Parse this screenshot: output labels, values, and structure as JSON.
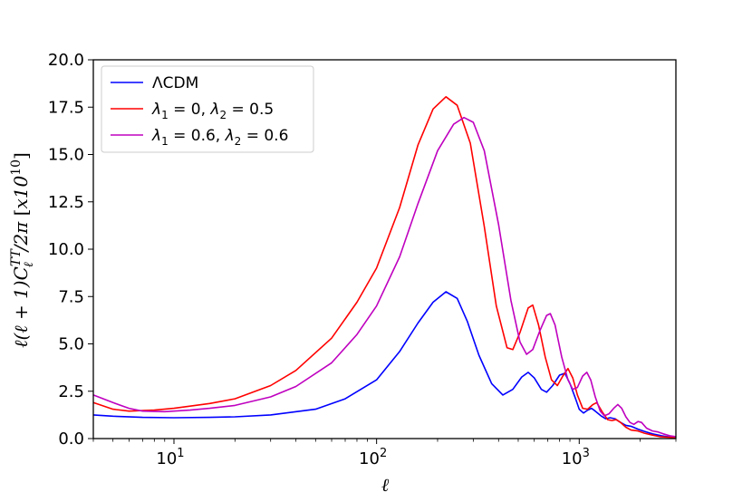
{
  "chart_data": {
    "type": "line",
    "x_scale": "log",
    "xlim": [
      4,
      3000
    ],
    "ylim": [
      0,
      20
    ],
    "xlabel": "ℓ",
    "ylabel": "ℓ(ℓ + 1)C_ℓ^{TT}/2π [x10^{10}]",
    "grid": false,
    "legend_position": "top-left",
    "x_ticks": [
      {
        "value": 10,
        "base": "10",
        "exp": "1"
      },
      {
        "value": 100,
        "base": "10",
        "exp": "2"
      },
      {
        "value": 1000,
        "base": "10",
        "exp": "3"
      }
    ],
    "y_ticks": [
      "0.0",
      "2.5",
      "5.0",
      "7.5",
      "10.0",
      "12.5",
      "15.0",
      "17.5",
      "20.0"
    ],
    "series": [
      {
        "name": "ΛCDM",
        "color": "#0000ff",
        "points": [
          [
            4,
            1.25
          ],
          [
            5,
            1.18
          ],
          [
            7,
            1.12
          ],
          [
            10,
            1.1
          ],
          [
            15,
            1.12
          ],
          [
            20,
            1.15
          ],
          [
            30,
            1.25
          ],
          [
            50,
            1.55
          ],
          [
            70,
            2.1
          ],
          [
            100,
            3.1
          ],
          [
            130,
            4.6
          ],
          [
            160,
            6.1
          ],
          [
            190,
            7.2
          ],
          [
            220,
            7.75
          ],
          [
            250,
            7.4
          ],
          [
            280,
            6.2
          ],
          [
            320,
            4.4
          ],
          [
            370,
            2.9
          ],
          [
            420,
            2.3
          ],
          [
            470,
            2.6
          ],
          [
            520,
            3.25
          ],
          [
            560,
            3.5
          ],
          [
            600,
            3.2
          ],
          [
            650,
            2.6
          ],
          [
            690,
            2.45
          ],
          [
            740,
            2.8
          ],
          [
            800,
            3.35
          ],
          [
            850,
            3.45
          ],
          [
            900,
            2.9
          ],
          [
            960,
            2.1
          ],
          [
            1000,
            1.55
          ],
          [
            1050,
            1.35
          ],
          [
            1100,
            1.5
          ],
          [
            1150,
            1.6
          ],
          [
            1200,
            1.45
          ],
          [
            1280,
            1.2
          ],
          [
            1350,
            1.05
          ],
          [
            1420,
            1.1
          ],
          [
            1500,
            1.05
          ],
          [
            1600,
            0.85
          ],
          [
            1700,
            0.7
          ],
          [
            1800,
            0.65
          ],
          [
            1950,
            0.5
          ],
          [
            2100,
            0.38
          ],
          [
            2300,
            0.25
          ],
          [
            2550,
            0.15
          ],
          [
            2800,
            0.08
          ],
          [
            3000,
            0.05
          ]
        ]
      },
      {
        "name": "λ₁ = 0, λ₂ = 0.5",
        "color": "#ff0000",
        "points": [
          [
            4,
            1.9
          ],
          [
            5,
            1.55
          ],
          [
            6,
            1.45
          ],
          [
            8,
            1.5
          ],
          [
            10,
            1.6
          ],
          [
            15,
            1.85
          ],
          [
            20,
            2.1
          ],
          [
            30,
            2.8
          ],
          [
            40,
            3.6
          ],
          [
            60,
            5.3
          ],
          [
            80,
            7.2
          ],
          [
            100,
            9.0
          ],
          [
            130,
            12.2
          ],
          [
            160,
            15.5
          ],
          [
            190,
            17.4
          ],
          [
            220,
            18.05
          ],
          [
            250,
            17.6
          ],
          [
            290,
            15.6
          ],
          [
            340,
            11.2
          ],
          [
            390,
            7.0
          ],
          [
            440,
            4.8
          ],
          [
            470,
            4.7
          ],
          [
            510,
            5.6
          ],
          [
            560,
            6.9
          ],
          [
            590,
            7.05
          ],
          [
            630,
            6.0
          ],
          [
            680,
            4.3
          ],
          [
            730,
            3.1
          ],
          [
            780,
            2.8
          ],
          [
            830,
            3.3
          ],
          [
            880,
            3.7
          ],
          [
            930,
            3.2
          ],
          [
            980,
            2.3
          ],
          [
            1040,
            1.6
          ],
          [
            1100,
            1.55
          ],
          [
            1170,
            1.8
          ],
          [
            1220,
            1.9
          ],
          [
            1300,
            1.4
          ],
          [
            1380,
            1.0
          ],
          [
            1450,
            0.95
          ],
          [
            1520,
            1.0
          ],
          [
            1600,
            0.85
          ],
          [
            1700,
            0.6
          ],
          [
            1800,
            0.45
          ],
          [
            1950,
            0.4
          ],
          [
            2100,
            0.28
          ],
          [
            2300,
            0.18
          ],
          [
            2500,
            0.1
          ],
          [
            3000,
            0.05
          ]
        ]
      },
      {
        "name": "λ₁ = 0.6, λ₂ = 0.6",
        "color": "#bf00bf",
        "points": [
          [
            4,
            2.3
          ],
          [
            5,
            1.9
          ],
          [
            6,
            1.6
          ],
          [
            7,
            1.45
          ],
          [
            9,
            1.42
          ],
          [
            12,
            1.5
          ],
          [
            15,
            1.6
          ],
          [
            20,
            1.75
          ],
          [
            30,
            2.2
          ],
          [
            40,
            2.75
          ],
          [
            60,
            4.0
          ],
          [
            80,
            5.5
          ],
          [
            100,
            7.0
          ],
          [
            130,
            9.6
          ],
          [
            160,
            12.4
          ],
          [
            200,
            15.2
          ],
          [
            240,
            16.6
          ],
          [
            270,
            16.95
          ],
          [
            300,
            16.7
          ],
          [
            340,
            15.2
          ],
          [
            400,
            11.3
          ],
          [
            460,
            7.3
          ],
          [
            510,
            5.1
          ],
          [
            550,
            4.45
          ],
          [
            590,
            4.7
          ],
          [
            640,
            5.7
          ],
          [
            690,
            6.5
          ],
          [
            720,
            6.6
          ],
          [
            760,
            6.0
          ],
          [
            820,
            4.3
          ],
          [
            880,
            3.1
          ],
          [
            930,
            2.6
          ],
          [
            980,
            2.7
          ],
          [
            1040,
            3.3
          ],
          [
            1090,
            3.5
          ],
          [
            1140,
            3.1
          ],
          [
            1200,
            2.2
          ],
          [
            1270,
            1.45
          ],
          [
            1330,
            1.2
          ],
          [
            1400,
            1.3
          ],
          [
            1480,
            1.6
          ],
          [
            1550,
            1.8
          ],
          [
            1620,
            1.6
          ],
          [
            1700,
            1.15
          ],
          [
            1780,
            0.85
          ],
          [
            1860,
            0.75
          ],
          [
            1950,
            0.9
          ],
          [
            2030,
            0.85
          ],
          [
            2150,
            0.55
          ],
          [
            2300,
            0.4
          ],
          [
            2450,
            0.35
          ],
          [
            2600,
            0.25
          ],
          [
            2800,
            0.15
          ],
          [
            3000,
            0.1
          ]
        ]
      }
    ]
  }
}
